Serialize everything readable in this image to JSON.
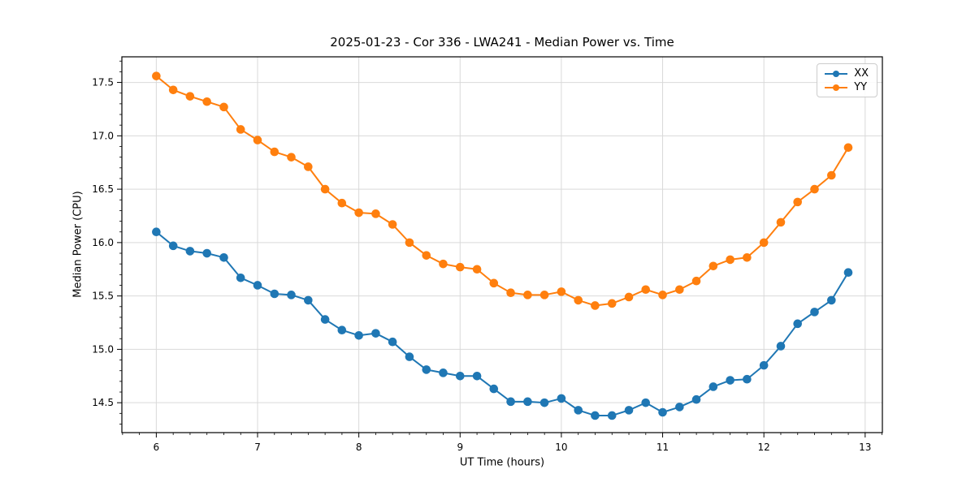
{
  "figure": {
    "title": "2025-01-23 - Cor 336 - LWA241 - Median Power vs. Time"
  },
  "chart_data": {
    "type": "line",
    "title": "2025-01-23 - Cor 336 - LWA241 - Median Power vs. Time",
    "xlabel": "UT Time (hours)",
    "ylabel": "Median Power (CPU)",
    "x": [
      6,
      6.167,
      6.333,
      6.5,
      6.667,
      6.833,
      7,
      7.167,
      7.333,
      7.5,
      7.667,
      7.833,
      8,
      8.167,
      8.333,
      8.5,
      8.667,
      8.833,
      9,
      9.167,
      9.333,
      9.5,
      9.667,
      9.833,
      10,
      10.167,
      10.333,
      10.5,
      10.667,
      10.833,
      11,
      11.167,
      11.333,
      11.5,
      11.667,
      11.833,
      12,
      12.167,
      12.333,
      12.5,
      12.667,
      12.833
    ],
    "series": [
      {
        "name": "XX",
        "color": "#1f77b4",
        "values": [
          16.1,
          15.97,
          15.92,
          15.9,
          15.86,
          15.67,
          15.6,
          15.52,
          15.51,
          15.46,
          15.28,
          15.18,
          15.13,
          15.15,
          15.07,
          14.93,
          14.81,
          14.78,
          14.75,
          14.75,
          14.63,
          14.51,
          14.51,
          14.5,
          14.54,
          14.43,
          14.38,
          14.38,
          14.43,
          14.5,
          14.41,
          14.46,
          14.53,
          14.65,
          14.71,
          14.72,
          14.85,
          15.03,
          15.24,
          15.35,
          15.46,
          15.72
        ]
      },
      {
        "name": "YY",
        "color": "#ff7f0e",
        "values": [
          17.56,
          17.43,
          17.37,
          17.32,
          17.27,
          17.06,
          16.96,
          16.85,
          16.8,
          16.71,
          16.5,
          16.37,
          16.28,
          16.27,
          16.17,
          16.0,
          15.88,
          15.8,
          15.77,
          15.75,
          15.62,
          15.53,
          15.51,
          15.51,
          15.54,
          15.46,
          15.41,
          15.43,
          15.49,
          15.56,
          15.51,
          15.56,
          15.64,
          15.78,
          15.84,
          15.86,
          16.0,
          16.19,
          16.38,
          16.5,
          16.63,
          16.89
        ]
      }
    ],
    "xlim": [
      5.66,
      13.17
    ],
    "ylim": [
      14.22,
      17.74
    ],
    "xticks": {
      "values": [
        6,
        7,
        8,
        9,
        10,
        11,
        12,
        13
      ],
      "labels": [
        "6",
        "7",
        "8",
        "9",
        "10",
        "11",
        "12",
        "13"
      ]
    },
    "yticks": {
      "values": [
        14.5,
        15.0,
        15.5,
        16.0,
        16.5,
        17.0,
        17.5
      ],
      "labels": [
        "14.5",
        "15.0",
        "15.5",
        "16.0",
        "16.5",
        "17.0",
        "17.5"
      ]
    },
    "minor_tick_step": {
      "x": 0.16667,
      "y": 0.1
    },
    "grid": true,
    "grid_color": "#d9d9d9",
    "spine_color": "#000000",
    "legend_position": "upper right",
    "legend": [
      {
        "label": "XX",
        "color": "#1f77b4"
      },
      {
        "label": "YY",
        "color": "#ff7f0e"
      }
    ]
  }
}
